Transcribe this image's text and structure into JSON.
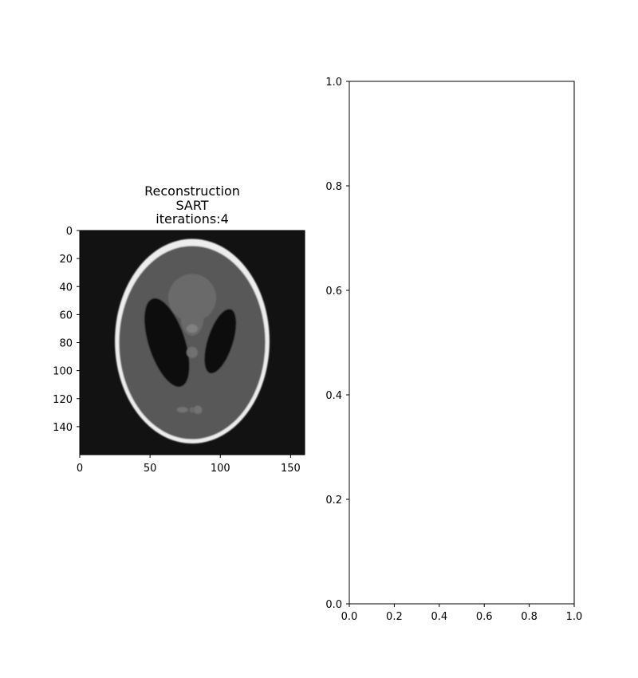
{
  "chart_data": [
    {
      "type": "heatmap",
      "title_lines": [
        "Reconstruction",
        "SART",
        "iterations:4"
      ],
      "colormap": "gray",
      "background_value": 0.07,
      "x_ticks": [
        0,
        50,
        100,
        150
      ],
      "y_ticks": [
        0,
        20,
        40,
        60,
        80,
        100,
        120,
        140
      ],
      "xlim": [
        0,
        160
      ],
      "ylim": [
        160,
        0
      ],
      "image_size": [
        160,
        160
      ],
      "ellipses": [
        {
          "cx": 80,
          "cy": 79,
          "rx": 55,
          "ry": 73,
          "angle": 0,
          "gray": 0.93
        },
        {
          "cx": 80,
          "cy": 80,
          "rx": 52,
          "ry": 69,
          "angle": 0,
          "gray": 0.35
        },
        {
          "cx": 80,
          "cy": 48,
          "rx": 17,
          "ry": 17,
          "angle": 0,
          "gray": 0.42
        },
        {
          "cx": 80,
          "cy": 63,
          "rx": 8,
          "ry": 12,
          "angle": 0,
          "gray": 0.42
        },
        {
          "cx": 62,
          "cy": 80,
          "rx": 13,
          "ry": 33,
          "angle": -18,
          "gray": 0.06
        },
        {
          "cx": 100,
          "cy": 79,
          "rx": 9,
          "ry": 24,
          "angle": 18,
          "gray": 0.06
        },
        {
          "cx": 80,
          "cy": 70,
          "rx": 4,
          "ry": 3,
          "angle": 0,
          "gray": 0.5
        },
        {
          "cx": 80,
          "cy": 87,
          "rx": 4,
          "ry": 4,
          "angle": 0,
          "gray": 0.44
        },
        {
          "cx": 73,
          "cy": 128,
          "rx": 4,
          "ry": 2,
          "angle": 0,
          "gray": 0.45
        },
        {
          "cx": 84,
          "cy": 128,
          "rx": 3,
          "ry": 3,
          "angle": 0,
          "gray": 0.45
        },
        {
          "cx": 80,
          "cy": 128,
          "rx": 2,
          "ry": 2,
          "angle": 0,
          "gray": 0.42
        }
      ]
    },
    {
      "type": "line",
      "series": [],
      "xlim": [
        0.0,
        1.0
      ],
      "ylim": [
        0.0,
        1.0
      ],
      "x_ticks": [
        "0.0",
        "0.2",
        "0.4",
        "0.6",
        "0.8",
        "1.0"
      ],
      "y_ticks": [
        "0.0",
        "0.2",
        "0.4",
        "0.6",
        "0.8",
        "1.0"
      ]
    }
  ]
}
